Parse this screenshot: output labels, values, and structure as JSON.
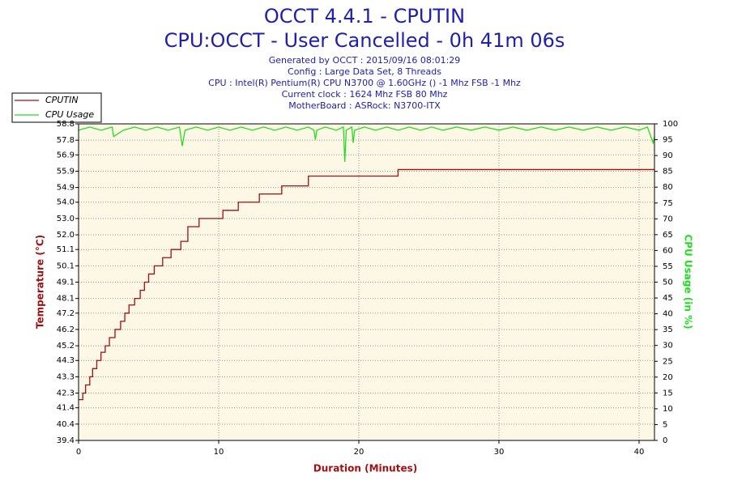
{
  "chart_data": {
    "type": "line",
    "title": "OCCT 4.4.1 - CPUTIN",
    "subtitle": "CPU:OCCT - User Cancelled - 0h 41m 06s",
    "info": [
      "Generated by OCCT : 2015/09/16 08:01:29",
      "Config : Large Data Set, 8 Threads",
      "CPU : Intel(R) Pentium(R) CPU N3700 @ 1.60GHz () -1 Mhz FSB -1 Mhz",
      "Current clock : 1624 Mhz FSB 80 Mhz",
      "MotherBoard : ASRock: N3700-ITX"
    ],
    "xlabel": "Duration (Minutes)",
    "ylabel": "Temperature (°C)",
    "y2label": "CPU Usage (in %)",
    "xlim": [
      0,
      41.1
    ],
    "xticks": [
      0,
      10,
      20,
      30,
      40
    ],
    "ylim": [
      39.4,
      58.8
    ],
    "yticks": [
      39.4,
      40.4,
      41.4,
      42.3,
      43.3,
      44.3,
      45.2,
      46.2,
      47.2,
      48.1,
      49.1,
      50.1,
      51.1,
      {
        "value": 52,
        "label": "52.0"
      },
      {
        "value": 53,
        "label": "53.0"
      },
      {
        "value": 54,
        "label": "54.0"
      },
      54.9,
      55.9,
      56.9,
      57.8,
      58.8
    ],
    "y2lim": [
      0,
      100
    ],
    "y2ticks": [
      0,
      5,
      10,
      15,
      20,
      25,
      30,
      35,
      40,
      45,
      50,
      55,
      60,
      65,
      70,
      75,
      80,
      85,
      90,
      95,
      100
    ],
    "grid": true,
    "series": [
      {
        "name": "CPUTIN",
        "color": "#a01010",
        "x": [
          0,
          0.3,
          0.3,
          0.5,
          0.5,
          0.8,
          0.8,
          1.0,
          1.0,
          1.3,
          1.3,
          1.6,
          1.6,
          1.9,
          1.9,
          2.2,
          2.2,
          2.6,
          2.6,
          3.0,
          3.0,
          3.3,
          3.3,
          3.6,
          3.6,
          4.0,
          4.0,
          4.4,
          4.4,
          4.7,
          4.7,
          5.0,
          5.0,
          5.4,
          5.4,
          6.0,
          6.0,
          6.6,
          6.6,
          7.3,
          7.3,
          7.8,
          7.8,
          8.6,
          8.6,
          10.3,
          10.3,
          11.4,
          11.4,
          12.9,
          12.9,
          14.5,
          14.5,
          16.4,
          16.4,
          22.8,
          22.8,
          41.1
        ],
        "values": [
          41.9,
          41.9,
          42.3,
          42.3,
          42.8,
          42.8,
          43.3,
          43.3,
          43.8,
          43.8,
          44.3,
          44.3,
          44.8,
          44.8,
          45.2,
          45.2,
          45.7,
          45.7,
          46.2,
          46.2,
          46.7,
          46.7,
          47.2,
          47.2,
          47.7,
          47.7,
          48.1,
          48.1,
          48.6,
          48.6,
          49.1,
          49.1,
          49.6,
          49.6,
          50.1,
          50.1,
          50.6,
          50.6,
          51.1,
          51.1,
          51.6,
          51.6,
          52.5,
          52.5,
          53.0,
          53.0,
          53.5,
          53.5,
          54.0,
          54.0,
          54.5,
          54.5,
          55.0,
          55.0,
          55.6,
          55.6,
          56.0,
          56.0
        ]
      },
      {
        "name": "CPU Usage",
        "color": "#22dd22",
        "axis": "y2",
        "x": [
          0,
          0.8,
          1.6,
          2.4,
          2.5,
          3.2,
          4,
          4.8,
          5.6,
          6.4,
          7.2,
          7.4,
          7.6,
          8.4,
          9.2,
          10,
          10.8,
          11.6,
          12.4,
          13.2,
          14,
          14.8,
          15.6,
          16.4,
          16.8,
          16.9,
          17,
          17.6,
          18.4,
          18.9,
          19,
          19.1,
          19.5,
          19.6,
          19.7,
          20.4,
          21.2,
          22,
          22.8,
          23.6,
          24.4,
          25.2,
          26,
          27,
          28,
          29,
          30,
          31,
          32,
          33,
          34,
          35,
          36,
          37,
          38,
          39,
          40,
          40.6,
          41,
          41.1
        ],
        "values": [
          98,
          99,
          98,
          99,
          96,
          98,
          99,
          98,
          99,
          98,
          99,
          93,
          98,
          99,
          98,
          99,
          98,
          99,
          98,
          99,
          98,
          99,
          98,
          99,
          98,
          95,
          98,
          99,
          98,
          99,
          88,
          98,
          99,
          94,
          98,
          99,
          98,
          99,
          98,
          99,
          98,
          99,
          98,
          99,
          98,
          99,
          98,
          99,
          98,
          99,
          98,
          99,
          98,
          99,
          98,
          99,
          98,
          99,
          94,
          96
        ]
      }
    ]
  }
}
